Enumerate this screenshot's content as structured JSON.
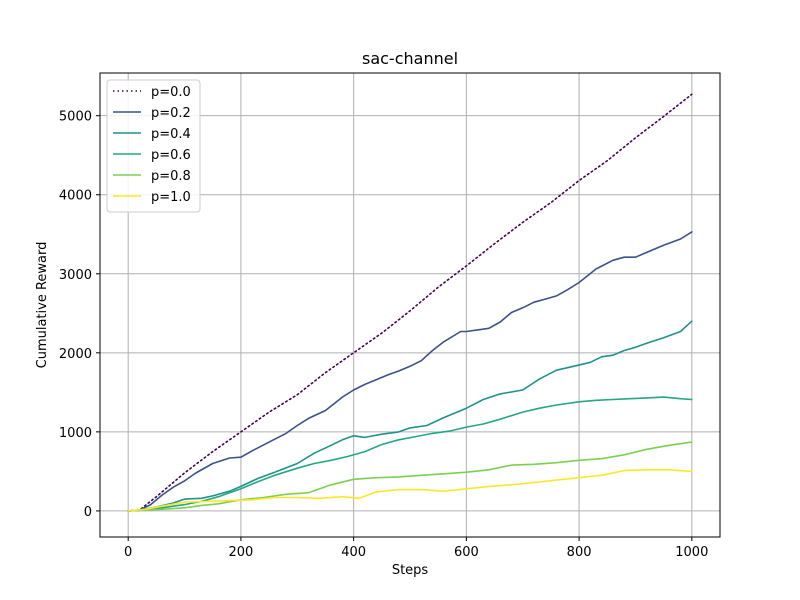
{
  "chart_data": {
    "type": "line",
    "title": "sac-channel",
    "xlabel": "Steps",
    "ylabel": "Cumulative Reward",
    "xlim": [
      -50,
      1050
    ],
    "ylim": [
      -330,
      5540
    ],
    "xticks": [
      0,
      200,
      400,
      600,
      800,
      1000
    ],
    "yticks": [
      0,
      1000,
      2000,
      3000,
      4000,
      5000
    ],
    "grid": true,
    "legend": "top-left",
    "series": [
      {
        "name": "p=0.0",
        "color": "#440154",
        "dash": "dotted",
        "x": [
          0,
          20,
          50,
          100,
          150,
          200,
          250,
          300,
          350,
          400,
          450,
          500,
          550,
          600,
          650,
          700,
          750,
          800,
          850,
          900,
          950,
          1000
        ],
        "y": [
          0,
          10,
          180,
          480,
          750,
          1000,
          1250,
          1470,
          1750,
          2000,
          2250,
          2530,
          2830,
          3100,
          3380,
          3650,
          3900,
          4180,
          4430,
          4720,
          4990,
          5270
        ]
      },
      {
        "name": "p=0.2",
        "color": "#3b528b",
        "dash": "solid",
        "x": [
          0,
          20,
          40,
          60,
          80,
          100,
          120,
          150,
          180,
          200,
          220,
          250,
          280,
          300,
          320,
          350,
          380,
          400,
          420,
          440,
          460,
          480,
          500,
          520,
          540,
          560,
          590,
          600,
          620,
          640,
          660,
          680,
          700,
          720,
          740,
          760,
          780,
          800,
          830,
          860,
          880,
          900,
          920,
          950,
          980,
          1000
        ],
        "y": [
          0,
          10,
          80,
          200,
          300,
          380,
          480,
          600,
          670,
          680,
          760,
          870,
          980,
          1080,
          1170,
          1270,
          1440,
          1530,
          1600,
          1660,
          1720,
          1770,
          1830,
          1900,
          2030,
          2140,
          2270,
          2270,
          2290,
          2310,
          2390,
          2510,
          2570,
          2640,
          2680,
          2720,
          2800,
          2890,
          3060,
          3170,
          3210,
          3210,
          3270,
          3360,
          3440,
          3530
        ]
      },
      {
        "name": "p=0.4",
        "color": "#21918c",
        "dash": "solid",
        "x": [
          0,
          20,
          50,
          80,
          100,
          130,
          150,
          180,
          200,
          230,
          260,
          300,
          330,
          360,
          380,
          400,
          420,
          450,
          480,
          500,
          530,
          560,
          600,
          630,
          660,
          700,
          730,
          760,
          790,
          820,
          840,
          860,
          880,
          900,
          920,
          950,
          980,
          1000
        ],
        "y": [
          0,
          10,
          50,
          100,
          150,
          160,
          190,
          250,
          310,
          410,
          490,
          600,
          730,
          830,
          900,
          950,
          930,
          970,
          1000,
          1050,
          1080,
          1180,
          1300,
          1410,
          1480,
          1530,
          1670,
          1780,
          1830,
          1880,
          1950,
          1970,
          2030,
          2070,
          2120,
          2190,
          2270,
          2400
        ]
      },
      {
        "name": "p=0.6",
        "color": "#22a884",
        "dash": "solid",
        "x": [
          0,
          30,
          60,
          100,
          130,
          160,
          200,
          230,
          260,
          300,
          330,
          360,
          390,
          420,
          450,
          480,
          510,
          540,
          570,
          600,
          630,
          660,
          700,
          730,
          760,
          800,
          830,
          860,
          890,
          920,
          950,
          980,
          1000
        ],
        "y": [
          0,
          10,
          40,
          80,
          120,
          180,
          280,
          370,
          450,
          540,
          600,
          640,
          690,
          750,
          840,
          900,
          940,
          980,
          1010,
          1060,
          1100,
          1160,
          1250,
          1300,
          1340,
          1380,
          1400,
          1410,
          1420,
          1430,
          1440,
          1420,
          1410
        ]
      },
      {
        "name": "p=0.8",
        "color": "#7ad151",
        "dash": "solid",
        "x": [
          0,
          30,
          60,
          100,
          130,
          160,
          200,
          240,
          280,
          320,
          360,
          400,
          440,
          480,
          520,
          560,
          600,
          640,
          680,
          720,
          760,
          800,
          840,
          880,
          920,
          960,
          1000
        ],
        "y": [
          0,
          10,
          20,
          40,
          70,
          90,
          140,
          170,
          210,
          230,
          330,
          400,
          420,
          430,
          450,
          470,
          490,
          520,
          580,
          590,
          610,
          640,
          660,
          710,
          780,
          830,
          870
        ]
      },
      {
        "name": "p=1.0",
        "color": "#fde725",
        "dash": "solid",
        "x": [
          0,
          30,
          60,
          100,
          140,
          180,
          220,
          260,
          300,
          340,
          380,
          410,
          440,
          480,
          520,
          560,
          600,
          640,
          680,
          720,
          760,
          800,
          840,
          880,
          920,
          960,
          1000
        ],
        "y": [
          0,
          20,
          60,
          110,
          120,
          130,
          140,
          170,
          170,
          160,
          180,
          160,
          240,
          270,
          270,
          250,
          280,
          310,
          330,
          360,
          390,
          420,
          450,
          510,
          520,
          520,
          500
        ]
      }
    ]
  }
}
